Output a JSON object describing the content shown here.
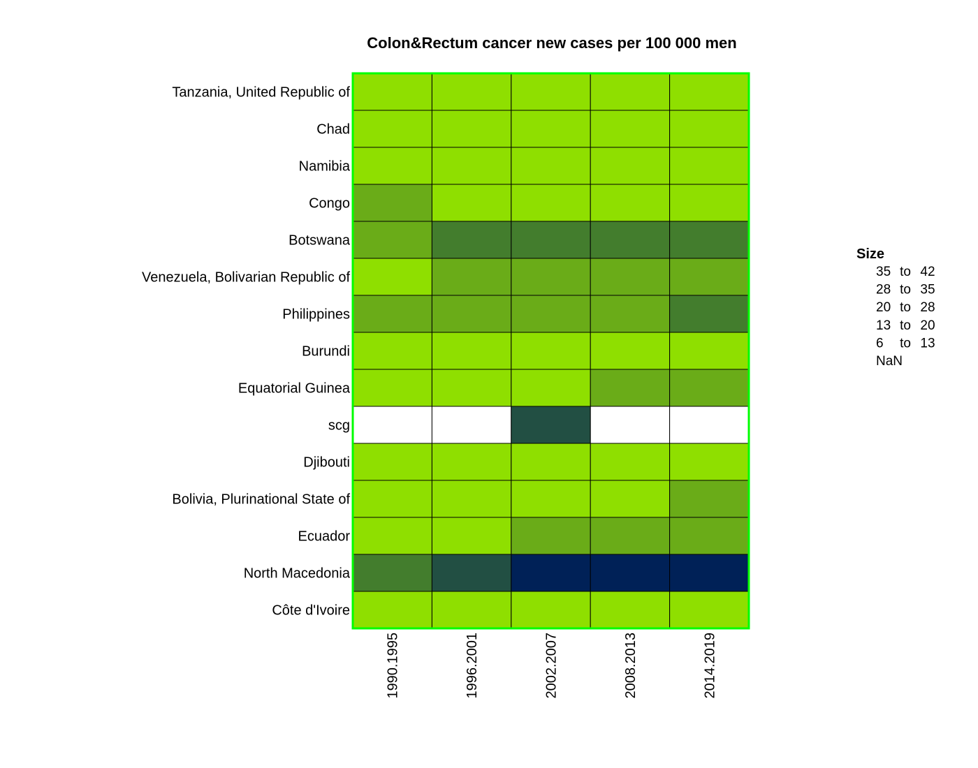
{
  "chart_data": {
    "type": "heatmap",
    "title": "Colon&Rectum cancer new cases per 100 000 men",
    "rows": [
      "Tanzania, United Republic of",
      "Chad",
      "Namibia",
      "Congo",
      "Botswana",
      "Venezuela, Bolivarian Republic of",
      "Philippines",
      "Burundi",
      "Equatorial Guinea",
      "scg",
      "Djibouti",
      "Bolivia, Plurinational State of",
      "Ecuador",
      "North Macedonia",
      "Côte d'Ivoire"
    ],
    "columns": [
      "1990.1995",
      "1996.2001",
      "2002.2007",
      "2008.2013",
      "2014.2019"
    ],
    "cells": [
      [
        "6 to 13",
        "6 to 13",
        "6 to 13",
        "6 to 13",
        "6 to 13"
      ],
      [
        "6 to 13",
        "6 to 13",
        "6 to 13",
        "6 to 13",
        "6 to 13"
      ],
      [
        "6 to 13",
        "6 to 13",
        "6 to 13",
        "6 to 13",
        "6 to 13"
      ],
      [
        "13 to 20",
        "6 to 13",
        "6 to 13",
        "6 to 13",
        "6 to 13"
      ],
      [
        "13 to 20",
        "20 to 28",
        "20 to 28",
        "20 to 28",
        "20 to 28"
      ],
      [
        "6 to 13",
        "13 to 20",
        "13 to 20",
        "13 to 20",
        "13 to 20"
      ],
      [
        "13 to 20",
        "13 to 20",
        "13 to 20",
        "13 to 20",
        "20 to 28"
      ],
      [
        "6 to 13",
        "6 to 13",
        "6 to 13",
        "6 to 13",
        "6 to 13"
      ],
      [
        "6 to 13",
        "6 to 13",
        "6 to 13",
        "13 to 20",
        "13 to 20"
      ],
      [
        "NaN",
        "NaN",
        "28 to 35",
        "NaN",
        "NaN"
      ],
      [
        "6 to 13",
        "6 to 13",
        "6 to 13",
        "6 to 13",
        "6 to 13"
      ],
      [
        "6 to 13",
        "6 to 13",
        "6 to 13",
        "6 to 13",
        "13 to 20"
      ],
      [
        "6 to 13",
        "6 to 13",
        "13 to 20",
        "13 to 20",
        "13 to 20"
      ],
      [
        "20 to 28",
        "28 to 35",
        "35 to 42",
        "35 to 42",
        "35 to 42"
      ],
      [
        "6 to 13",
        "6 to 13",
        "6 to 13",
        "6 to 13",
        "6 to 13"
      ]
    ],
    "legend": {
      "title": "Size",
      "placement": "right",
      "entries": [
        {
          "from": "35",
          "to_word": "to",
          "upto": "42",
          "label": "35 to 42",
          "color": "#002157"
        },
        {
          "from": "28",
          "to_word": "to",
          "upto": "35",
          "label": "28 to 35",
          "color": "#224f43"
        },
        {
          "from": "20",
          "to_word": "to",
          "upto": "28",
          "label": "20 to 28",
          "color": "#437d2d"
        },
        {
          "from": "13",
          "to_word": "to",
          "upto": "20",
          "label": "13 to 20",
          "color": "#6aac18"
        },
        {
          "from": "6",
          "to_word": "to",
          "upto": "13",
          "label": "6 to 13",
          "color": "#8fdf00"
        },
        {
          "from": "NaN",
          "to_word": "",
          "upto": "",
          "label": "NaN",
          "color": "#ffffff"
        }
      ]
    },
    "frame_color": "#00ff00",
    "grid_color": "#000000"
  }
}
